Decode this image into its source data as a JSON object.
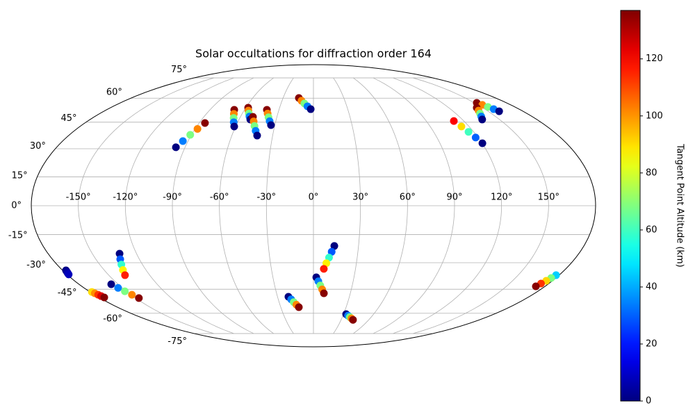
{
  "chart_data": {
    "type": "scatter",
    "projection": "mollweide",
    "title": "Solar occultations for diffraction order 164",
    "x": [
      -96.4,
      -93.7,
      -90.9,
      -88.2,
      -85.4,
      -68.9,
      -66.9,
      -65.0,
      -63.1,
      -61.1,
      -57.9,
      -56.2,
      -54.4,
      -52.7,
      -50.9,
      -49.7,
      -47.6,
      -45.6,
      -43.5,
      -41.4,
      -40.5,
      -38.6,
      -36.8,
      -34.9,
      -33.0,
      -14.4,
      -11.4,
      -8.4,
      -5.4,
      -2.4,
      152.2,
      154.0,
      155.9,
      157.7,
      159.5,
      144.8,
      142.6,
      140.4,
      138.2,
      136.0,
      112.0,
      114.1,
      116.1,
      118.2,
      120.2,
      -177.6,
      -177.9,
      -178.2,
      -178.5,
      -178.8,
      -178.6,
      -177.9,
      -177.1,
      -176.4,
      -175.6,
      -131.5,
      -133.2,
      -134.8,
      -136.5,
      -138.1,
      -155.3,
      -153.3,
      -151.3,
      -149.3,
      -147.3,
      -20.9,
      -19.0,
      -17.2,
      -15.3,
      -13.4,
      2.1,
      3.7,
      5.3,
      6.9,
      8.5,
      13.9,
      12.3,
      10.7,
      9.0,
      7.4,
      32.6,
      35.2,
      37.8,
      40.3,
      42.9,
      177.8,
      176.6,
      175.4,
      174.1,
      172.9
    ],
    "y": [
      30.8,
      34.2,
      37.7,
      41.1,
      44.5,
      52.5,
      50.0,
      47.5,
      45.0,
      42.5,
      53.8,
      52.0,
      50.2,
      48.4,
      46.6,
      48.2,
      45.5,
      42.8,
      40.0,
      37.3,
      52.5,
      50.2,
      47.9,
      45.6,
      43.3,
      60.1,
      58.3,
      56.5,
      54.7,
      52.9,
      56.9,
      55.6,
      54.3,
      52.9,
      51.6,
      53.8,
      52.0,
      50.2,
      48.4,
      46.6,
      45.7,
      42.5,
      39.4,
      36.2,
      33.0,
      -34.2,
      -34.8,
      -35.4,
      -35.9,
      -36.5,
      -46.6,
      -47.4,
      -48.3,
      -49.1,
      -49.9,
      -25.1,
      -28.1,
      -31.0,
      -34.0,
      -36.9,
      -42.1,
      -44.2,
      -46.2,
      -48.3,
      -50.3,
      -49.5,
      -51.1,
      -52.8,
      -54.4,
      -56.0,
      -38.1,
      -40.4,
      -42.8,
      -45.1,
      -47.4,
      -21.0,
      -24.1,
      -27.2,
      -30.3,
      -33.4,
      -60.6,
      -61.6,
      -62.6,
      -63.5,
      -64.5,
      -36.9,
      -38.5,
      -40.1,
      -41.7,
      -43.3
    ],
    "c": [
      0,
      34,
      68,
      102,
      136,
      136,
      102,
      68,
      34,
      0,
      136,
      102,
      68,
      34,
      0,
      136,
      102,
      68,
      34,
      0,
      136,
      102,
      68,
      34,
      0,
      136,
      102,
      68,
      34,
      0,
      136,
      102,
      68,
      34,
      0,
      136,
      102,
      68,
      34,
      0,
      120,
      90,
      60,
      30,
      0,
      0,
      2,
      4,
      6,
      8,
      90,
      101,
      113,
      124,
      136,
      0,
      29,
      58,
      87,
      116,
      0,
      34,
      68,
      102,
      136,
      0,
      34,
      68,
      102,
      136,
      0,
      34,
      68,
      102,
      136,
      0,
      29,
      58,
      87,
      116,
      0,
      34,
      68,
      102,
      136,
      45,
      68,
      91,
      113,
      136
    ],
    "xlim": [
      -180,
      180
    ],
    "ylim": [
      -90,
      90
    ],
    "xticks": [
      {
        "value": -150,
        "label": "-150°"
      },
      {
        "value": -120,
        "label": "-120°"
      },
      {
        "value": -90,
        "label": "-90°"
      },
      {
        "value": -60,
        "label": "-60°"
      },
      {
        "value": -30,
        "label": "-30°"
      },
      {
        "value": 0,
        "label": "0°"
      },
      {
        "value": 30,
        "label": "30°"
      },
      {
        "value": 60,
        "label": "60°"
      },
      {
        "value": 90,
        "label": "90°"
      },
      {
        "value": 120,
        "label": "120°"
      },
      {
        "value": 150,
        "label": "150°"
      }
    ],
    "yticks": [
      {
        "value": -75,
        "label": "-75°"
      },
      {
        "value": -60,
        "label": "-60°"
      },
      {
        "value": -45,
        "label": "-45°"
      },
      {
        "value": -30,
        "label": "-30°"
      },
      {
        "value": -15,
        "label": "-15°"
      },
      {
        "value": 0,
        "label": "0°"
      },
      {
        "value": 15,
        "label": "15°"
      },
      {
        "value": 30,
        "label": "30°"
      },
      {
        "value": 45,
        "label": "45°"
      },
      {
        "value": 60,
        "label": "60°"
      },
      {
        "value": 75,
        "label": "75°"
      }
    ],
    "grid": true,
    "colorbar": {
      "label": "Tangent Point Altitude (km)",
      "colormap": "jet",
      "lim": [
        0,
        137
      ],
      "ticks": [
        0,
        20,
        40,
        60,
        80,
        100,
        120
      ]
    }
  }
}
